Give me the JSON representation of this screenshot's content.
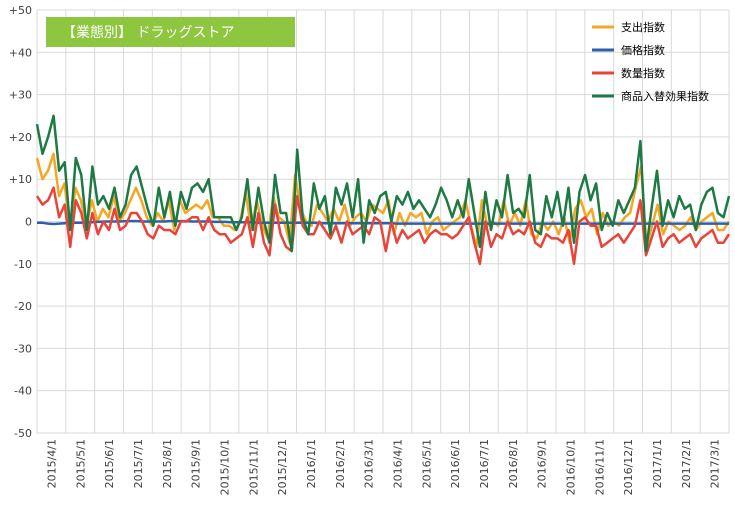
{
  "chart_data": {
    "type": "line",
    "title": "【業態別】 ドラッグストア",
    "ylim": [
      -50,
      50
    ],
    "y_ticks": [
      "+50",
      "+40",
      "+30",
      "+20",
      "+10",
      "0",
      "-10",
      "-20",
      "-30",
      "-40",
      "-50"
    ],
    "y_tick_values": [
      50,
      40,
      30,
      20,
      10,
      0,
      -10,
      -20,
      -30,
      -40,
      -50
    ],
    "x_labels": [
      "2015/4/1",
      "2015/5/1",
      "2015/6/1",
      "2015/7/1",
      "2015/8/1",
      "2015/9/1",
      "2015/10/1",
      "2015/11/1",
      "2015/12/1",
      "2016/1/1",
      "2016/2/1",
      "2016/3/1",
      "2016/4/1",
      "2016/5/1",
      "2016/6/1",
      "2016/7/1",
      "2016/8/1",
      "2016/9/1",
      "2016/10/1",
      "2016/11/1",
      "2016/12/1",
      "2017/1/1",
      "2017/2/1",
      "2017/3/1"
    ],
    "grid": true,
    "legend_position": "top-right",
    "series": [
      {
        "name": "支出指数",
        "color": "#F5A623",
        "values": [
          15,
          10,
          12,
          16,
          6,
          9,
          -2,
          8,
          5,
          -1,
          5,
          0,
          3,
          1,
          6,
          0,
          2,
          5,
          8,
          5,
          1,
          -1,
          2,
          0,
          5,
          -2,
          5,
          2,
          3,
          4,
          3,
          5,
          1,
          1,
          -1,
          -1,
          -2,
          0,
          7,
          -2,
          5,
          -1,
          -4,
          6,
          1,
          0,
          -5,
          11,
          3,
          0,
          -1,
          4,
          2,
          0,
          3,
          0,
          4,
          -1,
          1,
          2,
          0,
          4,
          3,
          2,
          5,
          -3,
          2,
          -1,
          2,
          1,
          2,
          -3,
          0,
          1,
          -2,
          -1,
          0,
          1,
          5,
          -1,
          -6,
          5,
          -1,
          0,
          -1,
          5,
          -1,
          2,
          -1,
          5,
          -3,
          -4,
          0,
          -2,
          0,
          -3,
          1,
          -5,
          3,
          5,
          1,
          3,
          -3,
          2,
          -1,
          0,
          -1,
          1,
          2,
          8,
          13,
          -6,
          -1,
          4,
          -3,
          0,
          -1,
          -2,
          -1,
          1,
          -2,
          0,
          1,
          2,
          -2,
          -2,
          0
        ]
      },
      {
        "name": "価格指数",
        "color": "#2E5FAA",
        "values": [
          -0.3,
          -0.3,
          -0.5,
          -0.6,
          -0.5,
          -0.4,
          -0.4,
          -0.3,
          -0.3,
          -0.2,
          -0.2,
          -0.1,
          0,
          0,
          0,
          0,
          0.1,
          0.1,
          0.1,
          0,
          0,
          0,
          0,
          0,
          0.1,
          0.1,
          0.1,
          0.1,
          0,
          0,
          0,
          0,
          -0.1,
          -0.1,
          -0.1,
          -0.2,
          -0.2,
          -0.2,
          -0.2,
          -0.2,
          -0.3,
          -0.3,
          -0.3,
          -0.3,
          -0.3,
          -0.3,
          -0.3,
          -0.3,
          -0.3,
          -0.3,
          -0.3,
          -0.4,
          -0.4,
          -0.4,
          -0.4,
          -0.4,
          -0.4,
          -0.4,
          -0.4,
          -0.4,
          -0.4,
          -0.4,
          -0.4,
          -0.4,
          -0.4,
          -0.5,
          -0.5,
          -0.5,
          -0.5,
          -0.5,
          -0.5,
          -0.5,
          -0.5,
          -0.5,
          -0.5,
          -0.5,
          -0.5,
          -0.5,
          -0.5,
          -0.5,
          -0.5,
          -0.5,
          -0.5,
          -0.5,
          -0.5,
          -0.5,
          -0.5,
          -0.5,
          -0.5,
          -0.5,
          -0.5,
          -0.5,
          -0.5,
          -0.5,
          -0.5,
          -0.5,
          -0.5,
          -0.5,
          -0.5,
          -0.5,
          -0.5,
          -0.5,
          -0.5,
          -0.5,
          -0.5,
          -0.5,
          -0.5,
          -0.5,
          -0.5,
          -0.5,
          -0.5,
          -0.5,
          -0.5,
          -0.5,
          -0.5,
          -0.5,
          -0.5,
          -0.5,
          -0.5,
          -0.5,
          -0.5,
          -0.5,
          -0.5,
          -0.5,
          -0.5,
          -0.5
        ]
      },
      {
        "name": "数量指数",
        "color": "#E8443A",
        "values": [
          6,
          4,
          5,
          8,
          1,
          4,
          -6,
          5,
          2,
          -4,
          2,
          -3,
          0,
          -2,
          3,
          -2,
          -1,
          2,
          2,
          0,
          -3,
          -4,
          -1,
          -2,
          -2,
          -3,
          0,
          0,
          1,
          1,
          -2,
          1,
          -2,
          -3,
          -3,
          -5,
          -4,
          -3,
          1,
          -6,
          2,
          -5,
          -8,
          4,
          -3,
          -6,
          -7,
          6,
          -1,
          -3,
          -3,
          0,
          -2,
          -4,
          -1,
          -5,
          0,
          -3,
          -2,
          -1,
          -3,
          1,
          0,
          -7,
          0,
          -5,
          -2,
          -4,
          -3,
          -2,
          -5,
          -3,
          -2,
          -3,
          -3,
          -4,
          -3,
          -1,
          1,
          -5,
          -10,
          0,
          -6,
          -3,
          -4,
          0,
          -3,
          -2,
          -3,
          0,
          -5,
          -6,
          -3,
          -4,
          -4,
          -5,
          -2,
          -10,
          0,
          1,
          -1,
          -1,
          -6,
          -5,
          -4,
          -3,
          -5,
          -3,
          -1,
          5,
          -8,
          -4,
          0,
          -6,
          -4,
          -3,
          -5,
          -4,
          -3,
          -6,
          -4,
          -3,
          -2,
          -5,
          -5,
          -3
        ]
      },
      {
        "name": "商品入替効果指数",
        "color": "#1E7A45",
        "values": [
          23,
          16,
          20,
          25,
          12,
          14,
          -2,
          15,
          11,
          -2,
          13,
          4,
          6,
          3,
          8,
          1,
          4,
          11,
          13,
          8,
          3,
          -1,
          8,
          1,
          7,
          -1,
          7,
          3,
          8,
          9,
          7,
          10,
          1,
          1,
          1,
          1,
          -2,
          1,
          10,
          -2,
          8,
          0,
          -5,
          11,
          2,
          2,
          -7,
          17,
          1,
          -3,
          9,
          3,
          6,
          -3,
          8,
          4,
          9,
          1,
          10,
          -5,
          5,
          2,
          6,
          7,
          0,
          6,
          4,
          7,
          3,
          5,
          3,
          1,
          4,
          8,
          5,
          1,
          5,
          1,
          10,
          2,
          -6,
          7,
          -2,
          5,
          1,
          11,
          2,
          3,
          1,
          11,
          -2,
          -3,
          6,
          1,
          7,
          -1,
          8,
          -5,
          7,
          11,
          5,
          9,
          -2,
          2,
          -1,
          5,
          2,
          5,
          8,
          19,
          -7,
          3,
          12,
          -1,
          5,
          1,
          6,
          3,
          4,
          -2,
          4,
          7,
          8,
          2,
          1,
          6
        ]
      }
    ]
  }
}
